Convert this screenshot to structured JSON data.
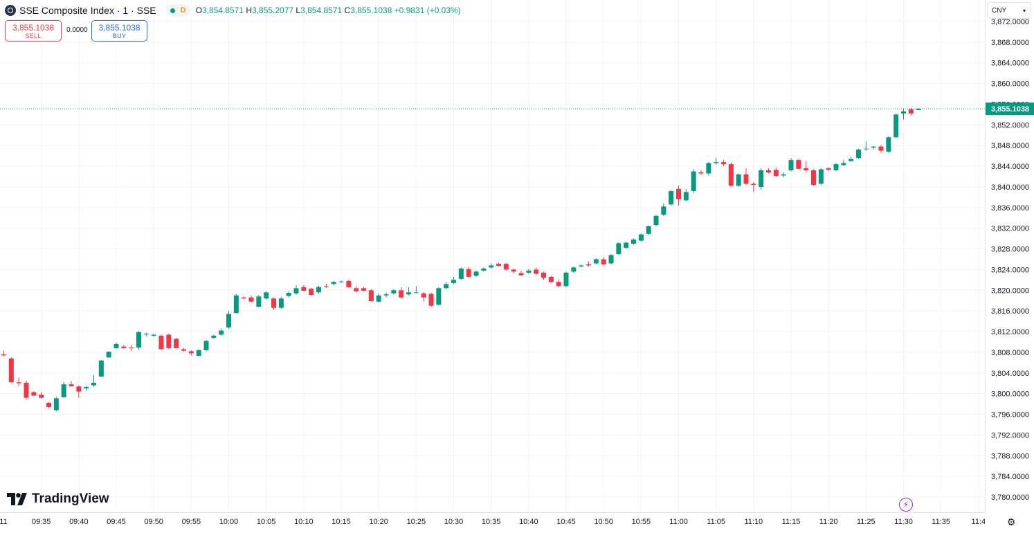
{
  "header": {
    "symbol_title": "SSE Composite Index · 1 · SSE",
    "status_letter": "D",
    "o_label": "O",
    "o_value": "3,854.8571",
    "h_label": "H",
    "h_value": "3,855.2077",
    "l_label": "L",
    "l_value": "3,854.8571",
    "c_label": "C",
    "c_value": "3,855.1038",
    "change": "+0.9831 (+0.03%)"
  },
  "trade": {
    "sell_price": "3,855.1038",
    "sell_label": "SELL",
    "spread": "0.0000",
    "buy_price": "3,855.1038",
    "buy_label": "BUY"
  },
  "currency": {
    "selected": "CNY"
  },
  "branding": {
    "logo_text": "TradingView"
  },
  "icons": {
    "symbol": "sse-symbol-icon",
    "bolt": "lightning-icon",
    "settings": "gear-icon",
    "dropdown": "chevron-down-icon"
  },
  "colors": {
    "up": "#089981",
    "down": "#f23645",
    "grid": "#f0f3fa",
    "last_price_line": "#089981",
    "text": "#131722"
  },
  "chart_data": {
    "type": "candlestick",
    "title": "SSE Composite Index · 1 · SSE",
    "interval": "1 minute",
    "currency": "CNY",
    "last_price": 3855.1038,
    "last_price_label": "3,855.1038",
    "ylim": [
      3778.0,
      3873.0
    ],
    "y_ticks": [
      3872,
      3868,
      3864,
      3860,
      3856,
      3852,
      3848,
      3844,
      3840,
      3836,
      3832,
      3828,
      3824,
      3820,
      3816,
      3812,
      3808,
      3804,
      3800,
      3796,
      3792,
      3788,
      3784,
      3780
    ],
    "y_tick_labels": [
      "3,872.0000",
      "3,868.0000",
      "3,864.0000",
      "3,860.0000",
      "3,856.0000",
      "3,852.0000",
      "3,848.0000",
      "3,844.0000",
      "3,840.0000",
      "3,836.0000",
      "3,832.0000",
      "3,828.0000",
      "3,824.0000",
      "3,820.0000",
      "3,816.0000",
      "3,812.0000",
      "3,808.0000",
      "3,804.0000",
      "3,800.0000",
      "3,796.0000",
      "3,792.0000",
      "3,788.0000",
      "3,784.0000",
      "3,780.0000"
    ],
    "x_ticks": [
      30,
      35,
      40,
      45,
      50,
      55,
      60,
      65,
      70,
      75,
      80,
      85,
      90,
      95,
      100,
      105,
      110,
      115,
      120,
      125,
      130,
      135,
      140,
      145
    ],
    "x_tick_labels": [
      "11",
      "09:35",
      "09:40",
      "09:45",
      "09:50",
      "09:55",
      "10:00",
      "10:05",
      "10:10",
      "10:15",
      "10:20",
      "10:25",
      "10:30",
      "10:35",
      "10:40",
      "10:45",
      "10:50",
      "10:55",
      "11:00",
      "11:05",
      "11:10",
      "11:15",
      "11:20",
      "11:25",
      "11:30",
      "11:35",
      "11:4"
    ],
    "x_label_minutes": [
      -60,
      35,
      40,
      45,
      50,
      55,
      60,
      65,
      70,
      75,
      80,
      85,
      90,
      95,
      100,
      105,
      110,
      115,
      120,
      125,
      130,
      135,
      140,
      145,
      150,
      155,
      160
    ],
    "time_origin": "09:00",
    "candles": [
      {
        "t": "09:30",
        "o": 3807.6,
        "h": 3808.3,
        "l": 3807.2,
        "c": 3807.4
      },
      {
        "t": "09:31",
        "o": 3806.8,
        "h": 3807.0,
        "l": 3802.1,
        "c": 3802.2
      },
      {
        "t": "09:32",
        "o": 3802.2,
        "h": 3803.1,
        "l": 3801.4,
        "c": 3802.0
      },
      {
        "t": "09:33",
        "o": 3802.1,
        "h": 3802.5,
        "l": 3798.8,
        "c": 3799.2
      },
      {
        "t": "09:34",
        "o": 3800.3,
        "h": 3800.4,
        "l": 3799.6,
        "c": 3799.6
      },
      {
        "t": "09:35",
        "o": 3799.8,
        "h": 3800.3,
        "l": 3799.0,
        "c": 3799.2
      },
      {
        "t": "09:36",
        "o": 3798.2,
        "h": 3798.4,
        "l": 3797.2,
        "c": 3797.4
      },
      {
        "t": "09:37",
        "o": 3796.8,
        "h": 3799.4,
        "l": 3796.6,
        "c": 3799.1
      },
      {
        "t": "09:38",
        "o": 3799.3,
        "h": 3802.3,
        "l": 3799.2,
        "c": 3801.8
      },
      {
        "t": "09:39",
        "o": 3801.8,
        "h": 3802.4,
        "l": 3801.4,
        "c": 3801.4
      },
      {
        "t": "09:40",
        "o": 3801.4,
        "h": 3801.6,
        "l": 3799.2,
        "c": 3800.4
      },
      {
        "t": "09:41",
        "o": 3801.0,
        "h": 3801.5,
        "l": 3800.6,
        "c": 3801.3
      },
      {
        "t": "09:42",
        "o": 3801.6,
        "h": 3803.6,
        "l": 3801.3,
        "c": 3802.1
      },
      {
        "t": "09:43",
        "o": 3803.3,
        "h": 3806.5,
        "l": 3803.2,
        "c": 3806.4
      },
      {
        "t": "09:44",
        "o": 3807.0,
        "h": 3808.2,
        "l": 3807.0,
        "c": 3808.1
      },
      {
        "t": "09:45",
        "o": 3808.8,
        "h": 3809.9,
        "l": 3808.6,
        "c": 3809.6
      },
      {
        "t": "09:46",
        "o": 3809.1,
        "h": 3809.4,
        "l": 3808.7,
        "c": 3808.8
      },
      {
        "t": "09:47",
        "o": 3808.9,
        "h": 3809.4,
        "l": 3808.2,
        "c": 3808.8
      },
      {
        "t": "09:48",
        "o": 3808.9,
        "h": 3812.1,
        "l": 3808.5,
        "c": 3811.9
      },
      {
        "t": "09:49",
        "o": 3811.6,
        "h": 3811.8,
        "l": 3811.1,
        "c": 3811.6
      },
      {
        "t": "09:50",
        "o": 3811.2,
        "h": 3811.6,
        "l": 3811.0,
        "c": 3811.4
      },
      {
        "t": "09:51",
        "o": 3811.2,
        "h": 3811.4,
        "l": 3808.4,
        "c": 3808.6
      },
      {
        "t": "09:52",
        "o": 3811.4,
        "h": 3811.6,
        "l": 3808.6,
        "c": 3808.8
      },
      {
        "t": "09:53",
        "o": 3810.6,
        "h": 3810.8,
        "l": 3808.8,
        "c": 3808.8
      },
      {
        "t": "09:54",
        "o": 3808.6,
        "h": 3808.8,
        "l": 3808.2,
        "c": 3808.3
      },
      {
        "t": "09:55",
        "o": 3808.2,
        "h": 3808.4,
        "l": 3807.4,
        "c": 3807.8
      },
      {
        "t": "09:56",
        "o": 3807.3,
        "h": 3808.6,
        "l": 3807.2,
        "c": 3808.4
      },
      {
        "t": "09:57",
        "o": 3808.4,
        "h": 3810.4,
        "l": 3808.2,
        "c": 3810.2
      },
      {
        "t": "09:58",
        "o": 3810.8,
        "h": 3811.4,
        "l": 3810.6,
        "c": 3811.2
      },
      {
        "t": "09:59",
        "o": 3811.4,
        "h": 3812.6,
        "l": 3811.2,
        "c": 3812.2
      },
      {
        "t": "10:00",
        "o": 3812.8,
        "h": 3816.0,
        "l": 3812.6,
        "c": 3815.4
      },
      {
        "t": "10:01",
        "o": 3815.6,
        "h": 3819.3,
        "l": 3815.5,
        "c": 3819.0
      },
      {
        "t": "10:02",
        "o": 3818.6,
        "h": 3818.8,
        "l": 3818.2,
        "c": 3818.4
      },
      {
        "t": "10:03",
        "o": 3818.6,
        "h": 3819.0,
        "l": 3817.6,
        "c": 3817.8
      },
      {
        "t": "10:04",
        "o": 3816.8,
        "h": 3819.1,
        "l": 3816.7,
        "c": 3818.8
      },
      {
        "t": "10:05",
        "o": 3818.4,
        "h": 3819.8,
        "l": 3818.2,
        "c": 3819.6
      },
      {
        "t": "10:06",
        "o": 3818.4,
        "h": 3818.6,
        "l": 3816.2,
        "c": 3816.6
      },
      {
        "t": "10:07",
        "o": 3816.6,
        "h": 3818.7,
        "l": 3816.4,
        "c": 3818.4
      },
      {
        "t": "10:08",
        "o": 3818.9,
        "h": 3819.8,
        "l": 3818.6,
        "c": 3819.5
      },
      {
        "t": "10:09",
        "o": 3819.4,
        "h": 3821.0,
        "l": 3819.1,
        "c": 3820.4
      },
      {
        "t": "10:10",
        "o": 3820.6,
        "h": 3821.0,
        "l": 3819.8,
        "c": 3819.9
      },
      {
        "t": "10:11",
        "o": 3820.3,
        "h": 3820.5,
        "l": 3818.9,
        "c": 3819.1
      },
      {
        "t": "10:12",
        "o": 3819.6,
        "h": 3820.9,
        "l": 3819.3,
        "c": 3820.6
      },
      {
        "t": "10:13",
        "o": 3820.8,
        "h": 3821.3,
        "l": 3820.4,
        "c": 3820.7
      },
      {
        "t": "10:14",
        "o": 3821.2,
        "h": 3821.8,
        "l": 3821.0,
        "c": 3821.6
      },
      {
        "t": "10:15",
        "o": 3821.6,
        "h": 3821.9,
        "l": 3821.4,
        "c": 3821.7
      },
      {
        "t": "10:16",
        "o": 3821.8,
        "h": 3822.0,
        "l": 3820.4,
        "c": 3820.6
      },
      {
        "t": "10:17",
        "o": 3820.4,
        "h": 3820.8,
        "l": 3819.6,
        "c": 3819.8
      },
      {
        "t": "10:18",
        "o": 3820.4,
        "h": 3820.6,
        "l": 3819.8,
        "c": 3819.9
      },
      {
        "t": "10:19",
        "o": 3820.0,
        "h": 3820.2,
        "l": 3817.8,
        "c": 3817.9
      },
      {
        "t": "10:20",
        "o": 3817.8,
        "h": 3819.4,
        "l": 3817.6,
        "c": 3819.0
      },
      {
        "t": "10:21",
        "o": 3819.0,
        "h": 3819.6,
        "l": 3818.6,
        "c": 3819.2
      },
      {
        "t": "10:22",
        "o": 3819.4,
        "h": 3820.2,
        "l": 3819.2,
        "c": 3820.0
      },
      {
        "t": "10:23",
        "o": 3820.0,
        "h": 3820.6,
        "l": 3818.4,
        "c": 3818.6
      },
      {
        "t": "10:24",
        "o": 3819.2,
        "h": 3820.6,
        "l": 3819.0,
        "c": 3819.6
      },
      {
        "t": "10:25",
        "o": 3819.6,
        "h": 3820.8,
        "l": 3819.4,
        "c": 3819.6
      },
      {
        "t": "10:26",
        "o": 3819.4,
        "h": 3819.6,
        "l": 3817.8,
        "c": 3818.6
      },
      {
        "t": "10:27",
        "o": 3819.3,
        "h": 3819.5,
        "l": 3816.8,
        "c": 3817.0
      },
      {
        "t": "10:28",
        "o": 3817.2,
        "h": 3820.6,
        "l": 3817.0,
        "c": 3820.4
      },
      {
        "t": "10:29",
        "o": 3820.4,
        "h": 3821.6,
        "l": 3820.2,
        "c": 3821.2
      },
      {
        "t": "10:30",
        "o": 3821.4,
        "h": 3822.6,
        "l": 3821.2,
        "c": 3822.0
      },
      {
        "t": "10:31",
        "o": 3822.2,
        "h": 3824.4,
        "l": 3822.0,
        "c": 3824.2
      },
      {
        "t": "10:32",
        "o": 3824.1,
        "h": 3824.5,
        "l": 3822.4,
        "c": 3822.6
      },
      {
        "t": "10:33",
        "o": 3822.8,
        "h": 3823.8,
        "l": 3822.6,
        "c": 3823.6
      },
      {
        "t": "10:34",
        "o": 3823.8,
        "h": 3824.4,
        "l": 3823.6,
        "c": 3824.2
      },
      {
        "t": "10:35",
        "o": 3824.4,
        "h": 3825.2,
        "l": 3824.2,
        "c": 3824.8
      },
      {
        "t": "10:36",
        "o": 3825.1,
        "h": 3825.3,
        "l": 3824.6,
        "c": 3824.7
      },
      {
        "t": "10:37",
        "o": 3825.1,
        "h": 3825.3,
        "l": 3823.8,
        "c": 3824.0
      },
      {
        "t": "10:38",
        "o": 3824.0,
        "h": 3824.2,
        "l": 3823.2,
        "c": 3823.6
      },
      {
        "t": "10:39",
        "o": 3823.3,
        "h": 3823.8,
        "l": 3822.8,
        "c": 3822.9
      },
      {
        "t": "10:40",
        "o": 3823.4,
        "h": 3824.1,
        "l": 3823.2,
        "c": 3823.8
      },
      {
        "t": "10:41",
        "o": 3824.0,
        "h": 3824.4,
        "l": 3823.0,
        "c": 3823.2
      },
      {
        "t": "10:42",
        "o": 3823.4,
        "h": 3823.6,
        "l": 3822.0,
        "c": 3822.4
      },
      {
        "t": "10:43",
        "o": 3822.6,
        "h": 3822.8,
        "l": 3821.4,
        "c": 3821.6
      },
      {
        "t": "10:44",
        "o": 3821.6,
        "h": 3822.1,
        "l": 3820.6,
        "c": 3820.8
      },
      {
        "t": "10:45",
        "o": 3820.8,
        "h": 3823.6,
        "l": 3820.6,
        "c": 3823.4
      },
      {
        "t": "10:46",
        "o": 3823.6,
        "h": 3824.6,
        "l": 3823.4,
        "c": 3824.4
      },
      {
        "t": "10:47",
        "o": 3824.6,
        "h": 3825.0,
        "l": 3824.4,
        "c": 3824.8
      },
      {
        "t": "10:48",
        "o": 3825.0,
        "h": 3825.6,
        "l": 3824.6,
        "c": 3824.8
      },
      {
        "t": "10:49",
        "o": 3825.2,
        "h": 3826.2,
        "l": 3825.0,
        "c": 3826.0
      },
      {
        "t": "10:50",
        "o": 3826.0,
        "h": 3826.4,
        "l": 3824.8,
        "c": 3825.0
      },
      {
        "t": "10:51",
        "o": 3825.2,
        "h": 3827.0,
        "l": 3825.0,
        "c": 3826.8
      },
      {
        "t": "10:52",
        "o": 3827.0,
        "h": 3829.3,
        "l": 3826.8,
        "c": 3829.1
      },
      {
        "t": "10:53",
        "o": 3828.2,
        "h": 3829.4,
        "l": 3828.0,
        "c": 3829.2
      },
      {
        "t": "10:54",
        "o": 3829.0,
        "h": 3830.0,
        "l": 3828.8,
        "c": 3829.8
      },
      {
        "t": "10:55",
        "o": 3829.6,
        "h": 3831.0,
        "l": 3829.4,
        "c": 3830.8
      },
      {
        "t": "10:56",
        "o": 3830.9,
        "h": 3832.5,
        "l": 3830.7,
        "c": 3832.4
      },
      {
        "t": "10:57",
        "o": 3832.6,
        "h": 3834.6,
        "l": 3832.4,
        "c": 3834.4
      },
      {
        "t": "10:58",
        "o": 3834.6,
        "h": 3836.8,
        "l": 3834.4,
        "c": 3836.2
      },
      {
        "t": "10:59",
        "o": 3836.6,
        "h": 3839.3,
        "l": 3836.4,
        "c": 3839.2
      },
      {
        "t": "11:00",
        "o": 3839.6,
        "h": 3840.2,
        "l": 3836.4,
        "c": 3837.6
      },
      {
        "t": "11:01",
        "o": 3837.4,
        "h": 3839.6,
        "l": 3837.2,
        "c": 3839.0
      },
      {
        "t": "11:02",
        "o": 3839.2,
        "h": 3843.4,
        "l": 3838.8,
        "c": 3843.0
      },
      {
        "t": "11:03",
        "o": 3842.8,
        "h": 3843.2,
        "l": 3842.3,
        "c": 3842.6
      },
      {
        "t": "11:04",
        "o": 3842.6,
        "h": 3844.8,
        "l": 3842.2,
        "c": 3844.6
      },
      {
        "t": "11:05",
        "o": 3844.6,
        "h": 3845.6,
        "l": 3844.2,
        "c": 3844.8
      },
      {
        "t": "11:06",
        "o": 3844.8,
        "h": 3845.2,
        "l": 3844.0,
        "c": 3844.4
      },
      {
        "t": "11:07",
        "o": 3844.4,
        "h": 3844.7,
        "l": 3840.0,
        "c": 3840.2
      },
      {
        "t": "11:08",
        "o": 3840.2,
        "h": 3842.6,
        "l": 3840.0,
        "c": 3842.4
      },
      {
        "t": "11:09",
        "o": 3842.4,
        "h": 3843.6,
        "l": 3840.4,
        "c": 3840.6
      },
      {
        "t": "11:10",
        "o": 3840.6,
        "h": 3840.9,
        "l": 3839.0,
        "c": 3840.4
      },
      {
        "t": "11:11",
        "o": 3840.0,
        "h": 3843.6,
        "l": 3839.4,
        "c": 3843.2
      },
      {
        "t": "11:12",
        "o": 3843.2,
        "h": 3843.6,
        "l": 3842.6,
        "c": 3842.8
      },
      {
        "t": "11:13",
        "o": 3843.3,
        "h": 3843.7,
        "l": 3841.9,
        "c": 3842.1
      },
      {
        "t": "11:14",
        "o": 3842.2,
        "h": 3842.8,
        "l": 3841.8,
        "c": 3842.4
      },
      {
        "t": "11:15",
        "o": 3843.2,
        "h": 3845.6,
        "l": 3843.0,
        "c": 3845.2
      },
      {
        "t": "11:16",
        "o": 3845.2,
        "h": 3845.4,
        "l": 3843.4,
        "c": 3843.5
      },
      {
        "t": "11:17",
        "o": 3843.6,
        "h": 3845.0,
        "l": 3842.8,
        "c": 3843.2
      },
      {
        "t": "11:18",
        "o": 3843.2,
        "h": 3843.4,
        "l": 3840.2,
        "c": 3840.4
      },
      {
        "t": "11:19",
        "o": 3840.6,
        "h": 3843.6,
        "l": 3840.4,
        "c": 3843.4
      },
      {
        "t": "11:20",
        "o": 3843.6,
        "h": 3843.8,
        "l": 3843.1,
        "c": 3843.3
      },
      {
        "t": "11:21",
        "o": 3843.2,
        "h": 3844.6,
        "l": 3843.0,
        "c": 3844.4
      },
      {
        "t": "11:22",
        "o": 3844.2,
        "h": 3845.2,
        "l": 3844.0,
        "c": 3844.6
      },
      {
        "t": "11:23",
        "o": 3845.0,
        "h": 3845.8,
        "l": 3844.8,
        "c": 3845.4
      },
      {
        "t": "11:24",
        "o": 3845.6,
        "h": 3847.4,
        "l": 3845.4,
        "c": 3847.2
      },
      {
        "t": "11:25",
        "o": 3847.3,
        "h": 3848.8,
        "l": 3847.0,
        "c": 3847.4
      },
      {
        "t": "11:26",
        "o": 3847.6,
        "h": 3847.9,
        "l": 3847.2,
        "c": 3847.8
      },
      {
        "t": "11:27",
        "o": 3847.8,
        "h": 3848.1,
        "l": 3846.6,
        "c": 3847.0
      },
      {
        "t": "11:28",
        "o": 3846.8,
        "h": 3849.8,
        "l": 3846.6,
        "c": 3849.6
      },
      {
        "t": "11:29",
        "o": 3849.6,
        "h": 3854.2,
        "l": 3849.4,
        "c": 3854.0
      },
      {
        "t": "11:30",
        "o": 3854.2,
        "h": 3855.2,
        "l": 3853.0,
        "c": 3854.6
      },
      {
        "t": "11:31",
        "o": 3855.0,
        "h": 3855.3,
        "l": 3853.8,
        "c": 3854.2
      },
      {
        "t": "11:32",
        "o": 3854.8571,
        "h": 3855.2077,
        "l": 3854.8571,
        "c": 3855.1038
      }
    ]
  }
}
